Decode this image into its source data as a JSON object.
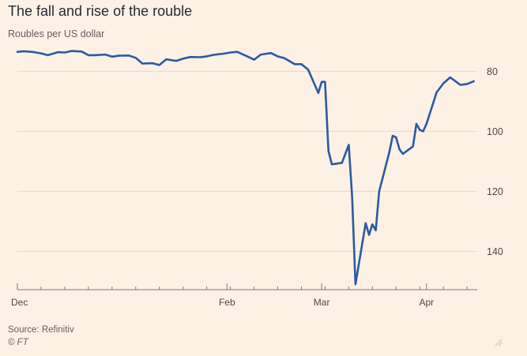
{
  "header": {
    "title": "The fall and rise of the rouble",
    "subtitle": "Roubles per US dollar"
  },
  "footer": {
    "source": "Source: Refinitiv",
    "credit": "© FT"
  },
  "colors": {
    "background": "#fdf1e6",
    "line": "#2b5aa0",
    "grid": "#e6d9ce",
    "tick_text": "#4d4845",
    "axis": "#7f7873"
  },
  "icons": {
    "resize": "resize-handle-icon"
  },
  "chart_data": {
    "type": "line",
    "x_ticks": [
      "Dec",
      "Feb",
      "Mar",
      "Apr"
    ],
    "x_tick_dates": [
      "2021-12-01",
      "2022-02-01",
      "2022-03-01",
      "2022-04-01"
    ],
    "y_ticks": [
      80,
      100,
      120,
      140
    ],
    "ylim": [
      72,
      152
    ],
    "y_inverted": true,
    "y_axis_side": "right",
    "grid": "horizontal",
    "series": [
      {
        "x": [
          "2021-12-01",
          "2021-12-03",
          "2021-12-06",
          "2021-12-08",
          "2021-12-10",
          "2021-12-13",
          "2021-12-15",
          "2021-12-17",
          "2021-12-20",
          "2021-12-22",
          "2021-12-24",
          "2021-12-27",
          "2021-12-29",
          "2021-12-31",
          "2022-01-03",
          "2022-01-05",
          "2022-01-07",
          "2022-01-10",
          "2022-01-12",
          "2022-01-14",
          "2022-01-17",
          "2022-01-19",
          "2022-01-21",
          "2022-01-24",
          "2022-01-26",
          "2022-01-28",
          "2022-01-31",
          "2022-02-02",
          "2022-02-04",
          "2022-02-07",
          "2022-02-09",
          "2022-02-11",
          "2022-02-14",
          "2022-02-16",
          "2022-02-18",
          "2022-02-21",
          "2022-02-23",
          "2022-02-25",
          "2022-02-28",
          "2022-03-01",
          "2022-03-02",
          "2022-03-03",
          "2022-03-04",
          "2022-03-07",
          "2022-03-09",
          "2022-03-10",
          "2022-03-11",
          "2022-03-14",
          "2022-03-15",
          "2022-03-16",
          "2022-03-17",
          "2022-03-18",
          "2022-03-21",
          "2022-03-22",
          "2022-03-23",
          "2022-03-24",
          "2022-03-25",
          "2022-03-28",
          "2022-03-29",
          "2022-03-30",
          "2022-03-31",
          "2022-04-01",
          "2022-04-04"
        ],
        "y": [
          73.5,
          73.3,
          73.6,
          74.0,
          74.6,
          73.6,
          73.7,
          73.2,
          73.4,
          74.6,
          74.6,
          74.4,
          75.1,
          74.8,
          74.7,
          75.5,
          77.4,
          77.3,
          77.9,
          76.0,
          76.5,
          75.8,
          75.2,
          75.3,
          75.0,
          74.5,
          74.1,
          73.7,
          73.5,
          75.0,
          76.1,
          74.4,
          73.9,
          75.0,
          75.6,
          77.6,
          77.6,
          79.4,
          87.2,
          83.5,
          83.5,
          106.5,
          111.0,
          110.5,
          104.5,
          122.0,
          151.0,
          130.6,
          134.5,
          131.0,
          133.0,
          120.0,
          107.0,
          101.5,
          102.0,
          106.0,
          107.5,
          105.0,
          97.5,
          99.5,
          100.0,
          97.5,
          87.0
        ],
        "note": ""
      }
    ],
    "series_tail": {
      "x": [
        "2022-04-06",
        "2022-04-08",
        "2022-04-11",
        "2022-04-13",
        "2022-04-15"
      ],
      "y": [
        84.0,
        82.0,
        84.5,
        84.2,
        83.3
      ]
    }
  }
}
